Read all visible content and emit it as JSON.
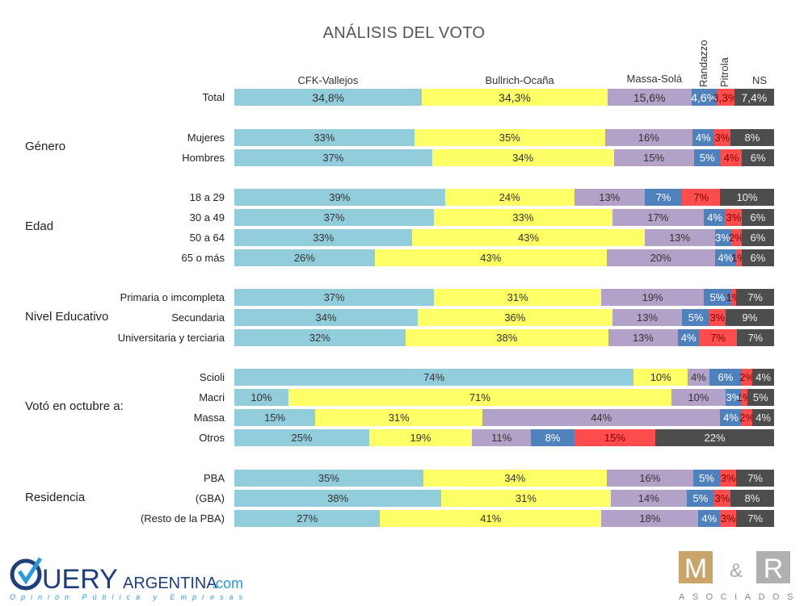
{
  "chart_data": {
    "type": "bar",
    "orientation": "horizontal-stacked-100",
    "title": "ANÁLISIS DEL VOTO",
    "series_names": [
      "CFK-Vallejos",
      "Bullrich-Ocaña",
      "Massa-Solá",
      "Randazzo",
      "Pitrola",
      "NS"
    ],
    "colors": [
      "#92cddc",
      "#ffff66",
      "#b3a2c7",
      "#4f81bd",
      "#ff4d4d",
      "#4d4d4d"
    ],
    "groups": [
      {
        "label": "",
        "rows": [
          {
            "label": "Total",
            "values": [
              34.8,
              34.3,
              15.6,
              4.6,
              3.3,
              7.4
            ],
            "labels": [
              "34,8%",
              "34,3%",
              "15,6%",
              "4,6%",
              "3,3%",
              "7,4%"
            ]
          }
        ]
      },
      {
        "label": "Género",
        "rows": [
          {
            "label": "Mujeres",
            "values": [
              33,
              35,
              16,
              4,
              3,
              8
            ]
          },
          {
            "label": "Hombres",
            "values": [
              37,
              34,
              15,
              5,
              4,
              6
            ]
          }
        ]
      },
      {
        "label": "Edad",
        "rows": [
          {
            "label": "18 a 29",
            "values": [
              39,
              24,
              13,
              7,
              7,
              10
            ]
          },
          {
            "label": "30 a 49",
            "values": [
              37,
              33,
              17,
              4,
              3,
              6
            ]
          },
          {
            "label": "50 a 64",
            "values": [
              33,
              43,
              13,
              3,
              2,
              6
            ]
          },
          {
            "label": "65 o más",
            "values": [
              26,
              43,
              20,
              4,
              1,
              6
            ]
          }
        ]
      },
      {
        "label": "Nivel Educativo",
        "rows": [
          {
            "label": "Primaria o imcompleta",
            "values": [
              37,
              31,
              19,
              5,
              1,
              7
            ]
          },
          {
            "label": "Secundaria",
            "values": [
              34,
              36,
              13,
              5,
              3,
              9
            ]
          },
          {
            "label": "Universitaria y terciaria",
            "values": [
              32,
              38,
              13,
              4,
              7,
              7
            ]
          }
        ]
      },
      {
        "label": "Votó en octubre a:",
        "rows": [
          {
            "label": "Scioli",
            "values": [
              74,
              10,
              4,
              6,
              2,
              4
            ]
          },
          {
            "label": "Macri",
            "values": [
              10,
              71,
              10,
              3,
              1,
              5
            ]
          },
          {
            "label": "Massa",
            "values": [
              15,
              31,
              44,
              4,
              2,
              4
            ]
          },
          {
            "label": "Otros",
            "values": [
              25,
              19,
              11,
              8,
              15,
              22
            ]
          }
        ]
      },
      {
        "label": "Residencia",
        "rows": [
          {
            "label": "PBA",
            "values": [
              35,
              34,
              16,
              5,
              3,
              7
            ]
          },
          {
            "label": "(GBA)",
            "values": [
              38,
              31,
              14,
              5,
              3,
              8
            ]
          },
          {
            "label": "(Resto de la PBA)",
            "values": [
              27,
              41,
              18,
              4,
              3,
              7
            ]
          }
        ]
      }
    ]
  },
  "logos": {
    "left": "QUERY ARGENTINA.com",
    "left_tagline": "Opinión Pública y Empresas",
    "right": "M&R",
    "right_sub": "ASOCIADOS"
  }
}
